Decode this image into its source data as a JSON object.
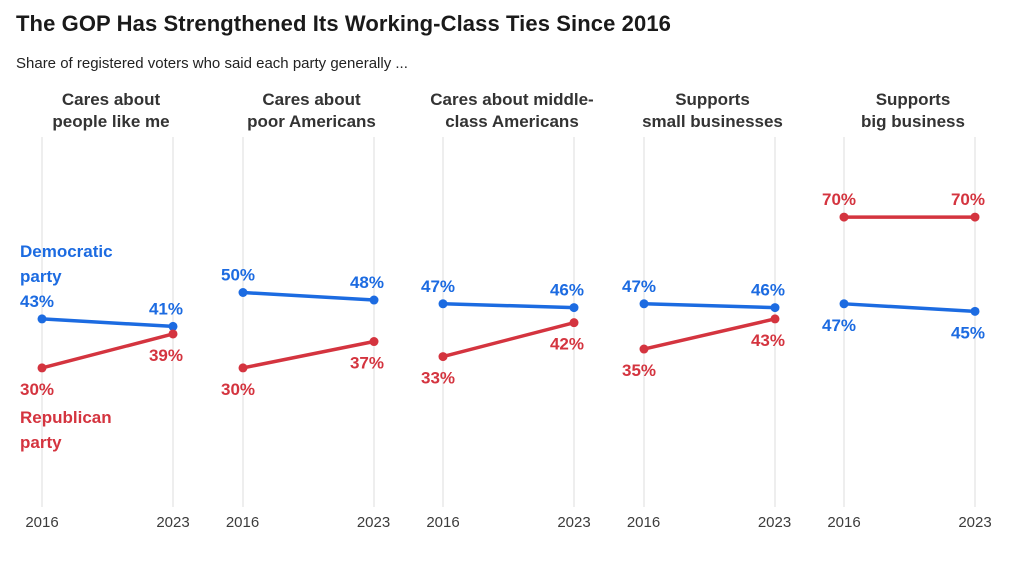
{
  "title": "The GOP Has Strengthened Its Working-Class Ties Since 2016",
  "subtitle": "Share of registered voters who said each party generally ...",
  "colors": {
    "democrat": "#1c6be1",
    "republican": "#d4343f",
    "grid": "#dcdcdc",
    "title_text": "#1a1a1a",
    "header_text": "#333333",
    "axis_text": "#3c3c3c"
  },
  "legend": {
    "democrat": [
      "Democratic",
      "party"
    ],
    "republican": [
      "Republican",
      "party"
    ]
  },
  "chart_data": {
    "type": "line",
    "subtype": "slope-small-multiples",
    "x_labels": [
      "2016",
      "2023"
    ],
    "ylim": [
      0,
      100
    ],
    "grid": "vertical-only",
    "legend_position": "inline-first-panel",
    "panels": [
      {
        "title": "Cares about people like me",
        "title_lines": [
          "Cares about",
          "people like me"
        ],
        "show_legend": true,
        "series": [
          {
            "name": "Democratic party",
            "party": "democrat",
            "values": [
              43,
              41
            ],
            "label_position": "above"
          },
          {
            "name": "Republican party",
            "party": "republican",
            "values": [
              30,
              39
            ],
            "label_position": "below"
          }
        ]
      },
      {
        "title": "Cares about poor Americans",
        "title_lines": [
          "Cares about",
          "poor Americans"
        ],
        "show_legend": false,
        "series": [
          {
            "name": "Democratic party",
            "party": "democrat",
            "values": [
              50,
              48
            ],
            "label_position": "above"
          },
          {
            "name": "Republican party",
            "party": "republican",
            "values": [
              30,
              37
            ],
            "label_position": "below"
          }
        ]
      },
      {
        "title": "Cares about middle-class Americans",
        "title_lines": [
          "Cares about middle-",
          "class Americans"
        ],
        "show_legend": false,
        "series": [
          {
            "name": "Democratic party",
            "party": "democrat",
            "values": [
              47,
              46
            ],
            "label_position": "above"
          },
          {
            "name": "Republican party",
            "party": "republican",
            "values": [
              33,
              42
            ],
            "label_position": "below"
          }
        ]
      },
      {
        "title": "Supports small businesses",
        "title_lines": [
          "Supports",
          "small businesses"
        ],
        "show_legend": false,
        "series": [
          {
            "name": "Democratic party",
            "party": "democrat",
            "values": [
              47,
              46
            ],
            "label_position": "above"
          },
          {
            "name": "Republican party",
            "party": "republican",
            "values": [
              35,
              43
            ],
            "label_position": "below"
          }
        ]
      },
      {
        "title": "Supports big business",
        "title_lines": [
          "Supports",
          "big business"
        ],
        "show_legend": false,
        "series": [
          {
            "name": "Republican party",
            "party": "republican",
            "values": [
              70,
              70
            ],
            "label_position": "above"
          },
          {
            "name": "Democratic party",
            "party": "democrat",
            "values": [
              47,
              45
            ],
            "label_position": "below"
          }
        ]
      }
    ]
  }
}
